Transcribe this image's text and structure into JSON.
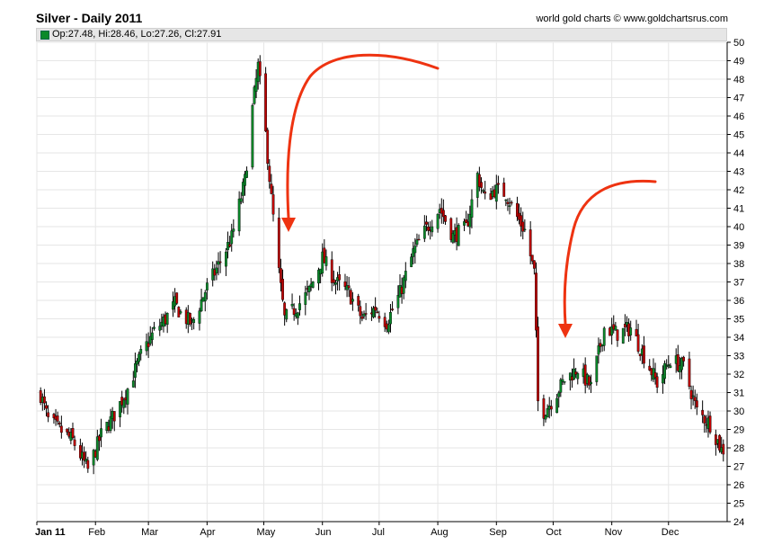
{
  "header": {
    "title": "Silver - Daily 2011",
    "source": "world gold charts © www.goldchartsrus.com",
    "ohlc_text": "Op:27.48, Hi:28.46, Lo:27.26, Cl:27.91"
  },
  "colors": {
    "up": "#0a8a2a",
    "down": "#c00000",
    "arrow": "#ee3311",
    "grid": "#e6e6e6"
  },
  "chart_data": {
    "type": "candlestick",
    "title": "Silver - Daily 2011",
    "xlabel": "",
    "ylabel": "",
    "ylim": [
      24,
      50
    ],
    "grid": true,
    "y_axis_side": "right",
    "y_ticks": [
      24,
      25,
      26,
      27,
      28,
      29,
      30,
      31,
      32,
      33,
      34,
      35,
      36,
      37,
      38,
      39,
      40,
      41,
      42,
      43,
      44,
      45,
      46,
      47,
      48,
      49,
      50
    ],
    "x_ticks": [
      "Jan 11",
      "Feb",
      "Mar",
      "Apr",
      "May",
      "Jun",
      "Jul",
      "Aug",
      "Sep",
      "Oct",
      "Nov",
      "Dec"
    ],
    "x_tick_dates": [
      "2011-01-01",
      "2011-02-01",
      "2011-03-01",
      "2011-04-01",
      "2011-05-01",
      "2011-06-01",
      "2011-07-01",
      "2011-08-01",
      "2011-09-01",
      "2011-10-01",
      "2011-11-01",
      "2011-12-01"
    ],
    "last_bar": {
      "open": 27.48,
      "high": 28.46,
      "low": 27.26,
      "close": 27.91
    },
    "series": [
      {
        "values": [
          {
            "x": "2011-01-03",
            "y": 30.9
          },
          {
            "x": "2011-01-07",
            "y": 29.5
          },
          {
            "x": "2011-01-14",
            "y": 28.9
          },
          {
            "x": "2011-01-20",
            "y": 28.4
          },
          {
            "x": "2011-01-26",
            "y": 27.2
          },
          {
            "x": "2011-01-28",
            "y": 26.8
          },
          {
            "x": "2011-02-04",
            "y": 28.7
          },
          {
            "x": "2011-02-11",
            "y": 29.8
          },
          {
            "x": "2011-02-18",
            "y": 31.2
          },
          {
            "x": "2011-02-25",
            "y": 33.0
          },
          {
            "x": "2011-03-04",
            "y": 34.3
          },
          {
            "x": "2011-03-10",
            "y": 35.0
          },
          {
            "x": "2011-03-15",
            "y": 35.8
          },
          {
            "x": "2011-03-18",
            "y": 35.3
          },
          {
            "x": "2011-03-24",
            "y": 34.7
          },
          {
            "x": "2011-03-31",
            "y": 36.5
          },
          {
            "x": "2011-04-07",
            "y": 37.9
          },
          {
            "x": "2011-04-14",
            "y": 39.4
          },
          {
            "x": "2011-04-21",
            "y": 42.5
          },
          {
            "x": "2011-04-25",
            "y": 46.4
          },
          {
            "x": "2011-04-28",
            "y": 48.7
          },
          {
            "x": "2011-05-02",
            "y": 45.0
          },
          {
            "x": "2011-05-05",
            "y": 41.5
          },
          {
            "x": "2011-05-09",
            "y": 37.5
          },
          {
            "x": "2011-05-12",
            "y": 35.0
          },
          {
            "x": "2011-05-18",
            "y": 35.6
          },
          {
            "x": "2011-05-25",
            "y": 36.5
          },
          {
            "x": "2011-06-01",
            "y": 38.3
          },
          {
            "x": "2011-06-08",
            "y": 37.0
          },
          {
            "x": "2011-06-15",
            "y": 36.4
          },
          {
            "x": "2011-06-22",
            "y": 35.0
          },
          {
            "x": "2011-06-29",
            "y": 35.6
          },
          {
            "x": "2011-07-05",
            "y": 34.8
          },
          {
            "x": "2011-07-12",
            "y": 36.4
          },
          {
            "x": "2011-07-19",
            "y": 38.6
          },
          {
            "x": "2011-07-26",
            "y": 39.9
          },
          {
            "x": "2011-08-02",
            "y": 41.0
          },
          {
            "x": "2011-08-09",
            "y": 39.5
          },
          {
            "x": "2011-08-16",
            "y": 39.9
          },
          {
            "x": "2011-08-22",
            "y": 42.8
          },
          {
            "x": "2011-08-26",
            "y": 41.5
          },
          {
            "x": "2011-08-31",
            "y": 42.0
          },
          {
            "x": "2011-09-06",
            "y": 41.8
          },
          {
            "x": "2011-09-12",
            "y": 40.5
          },
          {
            "x": "2011-09-16",
            "y": 39.8
          },
          {
            "x": "2011-09-21",
            "y": 37.5
          },
          {
            "x": "2011-09-23",
            "y": 30.5
          },
          {
            "x": "2011-09-26",
            "y": 30.0
          },
          {
            "x": "2011-09-30",
            "y": 30.5
          },
          {
            "x": "2011-10-07",
            "y": 31.7
          },
          {
            "x": "2011-10-14",
            "y": 32.3
          },
          {
            "x": "2011-10-21",
            "y": 31.3
          },
          {
            "x": "2011-10-28",
            "y": 34.5
          },
          {
            "x": "2011-11-04",
            "y": 34.2
          },
          {
            "x": "2011-11-11",
            "y": 34.5
          },
          {
            "x": "2011-11-18",
            "y": 33.0
          },
          {
            "x": "2011-11-25",
            "y": 31.5
          },
          {
            "x": "2011-12-02",
            "y": 32.8
          },
          {
            "x": "2011-12-09",
            "y": 32.4
          },
          {
            "x": "2011-12-16",
            "y": 30.0
          },
          {
            "x": "2011-12-23",
            "y": 29.3
          },
          {
            "x": "2011-12-29",
            "y": 27.9
          }
        ]
      }
    ]
  },
  "annotations": [
    {
      "type": "curved-arrow",
      "description": "down arrow after May peak"
    },
    {
      "type": "curved-arrow",
      "description": "down arrow after September drop"
    }
  ]
}
